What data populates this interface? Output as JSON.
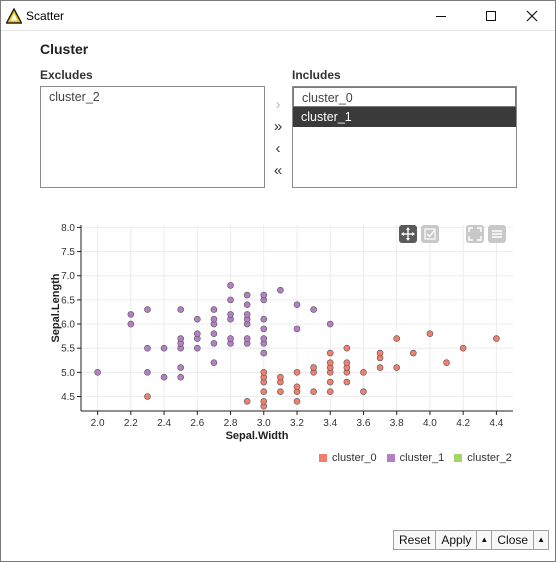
{
  "window": {
    "title": "Scatter"
  },
  "section": {
    "title": "Cluster"
  },
  "excludes": {
    "label": "Excludes",
    "items": [
      "cluster_2"
    ]
  },
  "includes": {
    "label": "Includes",
    "items": [
      "cluster_0",
      "cluster_1"
    ],
    "selected": "cluster_1"
  },
  "move_buttons": {
    "add": "›",
    "add_all": "»",
    "remove": "‹",
    "remove_all": "«"
  },
  "chart_data": {
    "type": "scatter",
    "xlabel": "Sepal.Width",
    "ylabel": "Sepal.Length",
    "xlim": [
      1.9,
      4.5
    ],
    "ylim": [
      4.2,
      8.05
    ],
    "xticks": [
      "2.0",
      "2.2",
      "2.4",
      "2.6",
      "2.8",
      "3.0",
      "3.2",
      "3.4",
      "3.6",
      "3.8",
      "4.0",
      "4.2",
      "4.4"
    ],
    "yticks": [
      "4.5",
      "5.0",
      "5.5",
      "6.0",
      "6.5",
      "7.0",
      "7.5",
      "8.0"
    ],
    "grid": true,
    "legend_position": "bottom-right",
    "series": [
      {
        "name": "cluster_0",
        "color": "#f07f6e",
        "points": [
          [
            2.3,
            4.5
          ],
          [
            2.9,
            4.4
          ],
          [
            3.0,
            4.3
          ],
          [
            3.0,
            4.4
          ],
          [
            3.0,
            4.6
          ],
          [
            3.0,
            4.8
          ],
          [
            3.0,
            4.9
          ],
          [
            3.0,
            5.0
          ],
          [
            3.1,
            4.6
          ],
          [
            3.1,
            4.8
          ],
          [
            3.1,
            4.9
          ],
          [
            3.2,
            4.4
          ],
          [
            3.2,
            4.6
          ],
          [
            3.2,
            4.7
          ],
          [
            3.2,
            5.0
          ],
          [
            3.3,
            5.0
          ],
          [
            3.3,
            5.1
          ],
          [
            3.4,
            4.6
          ],
          [
            3.4,
            4.8
          ],
          [
            3.4,
            5.0
          ],
          [
            3.4,
            5.1
          ],
          [
            3.4,
            5.2
          ],
          [
            3.4,
            5.4
          ],
          [
            3.5,
            5.0
          ],
          [
            3.5,
            5.1
          ],
          [
            3.5,
            5.2
          ],
          [
            3.5,
            5.5
          ],
          [
            3.6,
            4.6
          ],
          [
            3.6,
            5.0
          ],
          [
            3.7,
            5.1
          ],
          [
            3.7,
            5.3
          ],
          [
            3.7,
            5.4
          ],
          [
            3.8,
            5.1
          ],
          [
            3.8,
            5.7
          ],
          [
            3.9,
            5.4
          ],
          [
            4.0,
            5.8
          ],
          [
            4.1,
            5.2
          ],
          [
            4.2,
            5.5
          ],
          [
            4.4,
            5.7
          ],
          [
            3.5,
            4.8
          ],
          [
            3.3,
            4.6
          ]
        ]
      },
      {
        "name": "cluster_1",
        "color": "#b57fc6",
        "points": [
          [
            2.0,
            5.0
          ],
          [
            2.2,
            6.0
          ],
          [
            2.2,
            6.2
          ],
          [
            2.3,
            5.0
          ],
          [
            2.3,
            5.5
          ],
          [
            2.3,
            6.3
          ],
          [
            2.4,
            4.9
          ],
          [
            2.4,
            5.5
          ],
          [
            2.5,
            4.9
          ],
          [
            2.5,
            5.1
          ],
          [
            2.5,
            5.5
          ],
          [
            2.5,
            5.6
          ],
          [
            2.5,
            5.7
          ],
          [
            2.5,
            6.3
          ],
          [
            2.6,
            5.5
          ],
          [
            2.6,
            5.7
          ],
          [
            2.6,
            5.8
          ],
          [
            2.7,
            5.2
          ],
          [
            2.7,
            5.6
          ],
          [
            2.7,
            5.8
          ],
          [
            2.7,
            6.0
          ],
          [
            2.7,
            6.3
          ],
          [
            2.8,
            5.6
          ],
          [
            2.8,
            5.7
          ],
          [
            2.8,
            6.1
          ],
          [
            2.8,
            6.5
          ],
          [
            2.8,
            6.8
          ],
          [
            2.9,
            5.6
          ],
          [
            2.9,
            5.7
          ],
          [
            2.9,
            6.0
          ],
          [
            2.9,
            6.1
          ],
          [
            2.9,
            6.2
          ],
          [
            2.9,
            6.4
          ],
          [
            3.0,
            5.4
          ],
          [
            3.0,
            5.6
          ],
          [
            3.0,
            5.7
          ],
          [
            3.0,
            5.9
          ],
          [
            3.0,
            6.1
          ],
          [
            3.0,
            6.5
          ],
          [
            3.1,
            6.7
          ],
          [
            3.2,
            6.4
          ],
          [
            3.2,
            5.9
          ],
          [
            3.3,
            6.3
          ],
          [
            3.4,
            6.0
          ],
          [
            3.0,
            6.6
          ],
          [
            2.8,
            6.2
          ],
          [
            2.6,
            6.1
          ],
          [
            2.9,
            6.6
          ],
          [
            2.7,
            6.1
          ]
        ]
      },
      {
        "name": "cluster_2",
        "color": "#a6d36a",
        "points": []
      }
    ]
  },
  "toolbar": {
    "icons": [
      "move-icon",
      "select-icon",
      "fullscreen-icon",
      "menu-icon"
    ]
  },
  "footer": {
    "reset": "Reset",
    "apply": "Apply",
    "close": "Close"
  }
}
